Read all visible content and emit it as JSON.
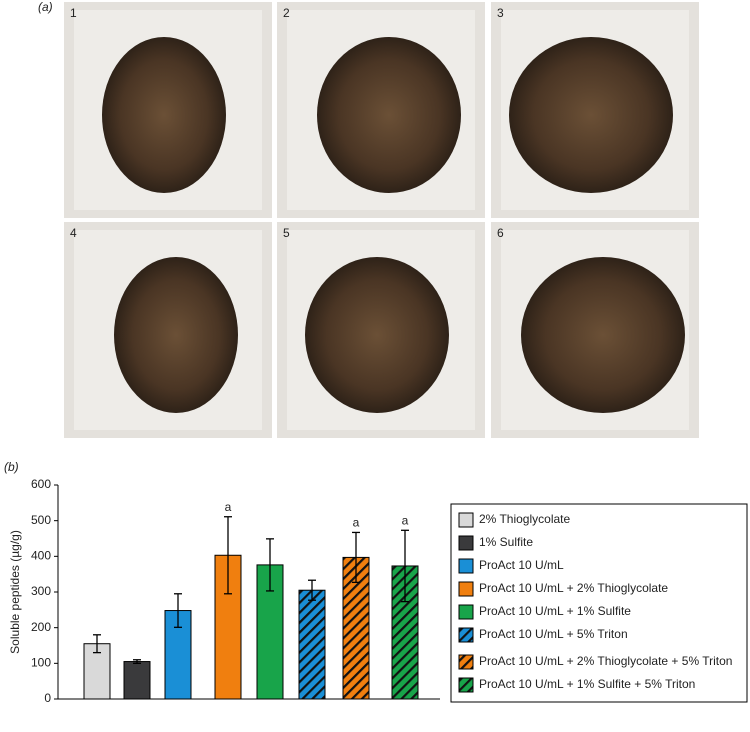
{
  "figure": {
    "panel_a": {
      "label": "(a)",
      "photos": [
        "1",
        "2",
        "3",
        "4",
        "5",
        "6"
      ]
    },
    "panel_b": {
      "label": "(b)"
    }
  },
  "chart_data": {
    "type": "bar",
    "y_label": "Soluble peptides (µg/g)",
    "ylim": [
      0,
      600
    ],
    "yticks": [
      0,
      100,
      200,
      300,
      400,
      500,
      600
    ],
    "grid": false,
    "legend": "right",
    "series": [
      {
        "name": "2% Thioglycolate",
        "color": "#d9d9d9",
        "pattern": "solid",
        "values": [
          155
        ],
        "errors": [
          25
        ]
      },
      {
        "name": "1% Sulfite",
        "color": "#3a3a3c",
        "pattern": "solid",
        "values": [
          105
        ],
        "errors": [
          5
        ]
      },
      {
        "name": "ProAct 10 U/mL",
        "color": "#1a8fd6",
        "pattern": "solid",
        "values": [
          248
        ],
        "errors": [
          47
        ]
      },
      {
        "name": "ProAct 10 U/mL + 2% Thioglycolate",
        "color": "#f07f0f",
        "pattern": "solid",
        "values": [
          403
        ],
        "errors": [
          108
        ],
        "annotation": "a"
      },
      {
        "name": "ProAct 10 U/mL + 1% Sulfite",
        "color": "#18a44a",
        "pattern": "solid",
        "values": [
          376
        ],
        "errors": [
          73
        ]
      },
      {
        "name": "ProAct 10 U/mL + 5% Triton",
        "color": "#1a8fd6",
        "pattern": "hatch",
        "values": [
          305
        ],
        "errors": [
          28
        ]
      },
      {
        "name": "ProAct 10 U/mL + 2% Thioglycolate + 5% Triton",
        "color": "#f07f0f",
        "pattern": "hatch",
        "values": [
          397
        ],
        "errors": [
          70
        ],
        "annotation": "a"
      },
      {
        "name": "ProAct 10 U/mL + 1% Sulfite + 5% Triton",
        "color": "#18a44a",
        "pattern": "hatch",
        "values": [
          373
        ],
        "errors": [
          100
        ],
        "annotation": "a"
      }
    ]
  }
}
